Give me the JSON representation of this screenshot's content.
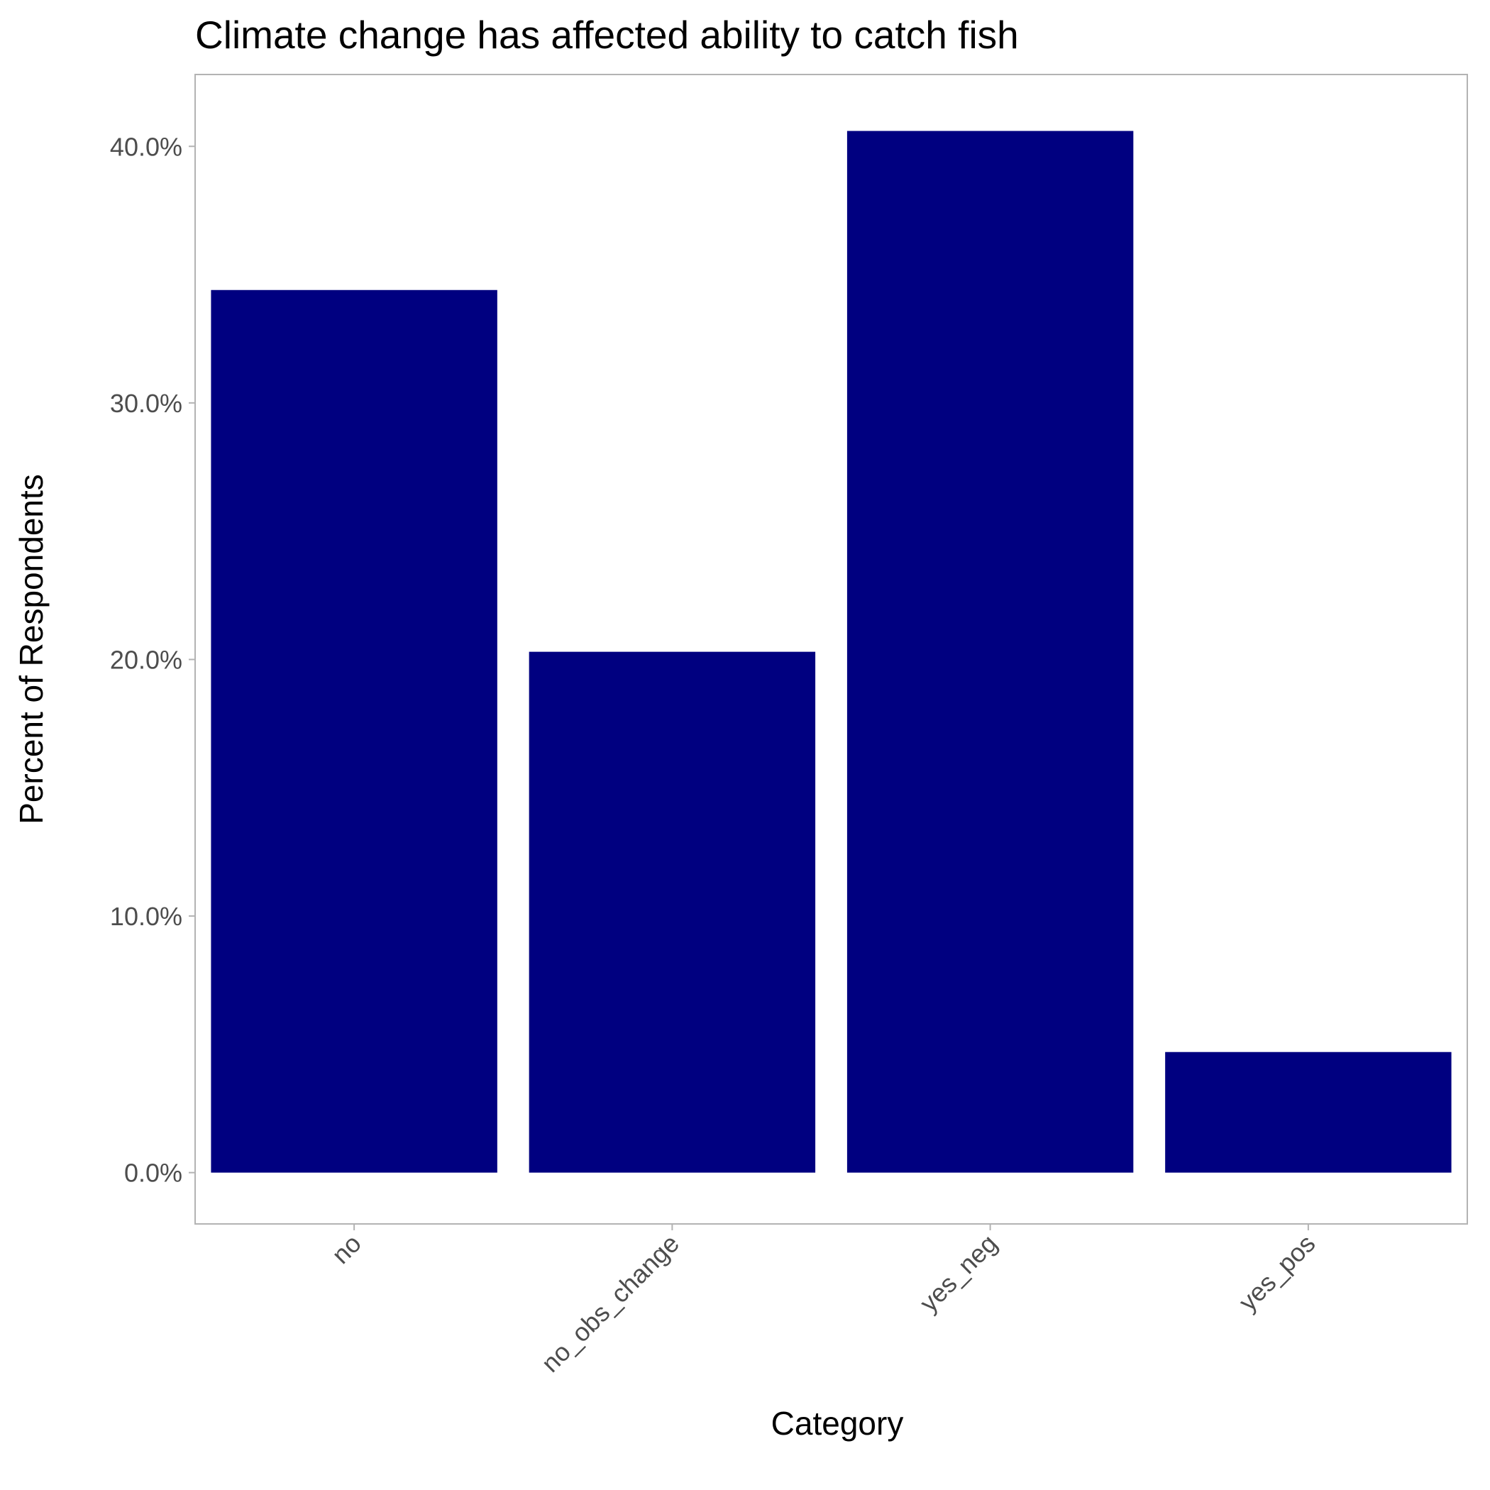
{
  "chart_data": {
    "type": "bar",
    "title": "Climate change has affected ability to catch fish",
    "xlabel": "Category",
    "ylabel": "Percent of Respondents",
    "categories": [
      "no",
      "no_obs_change",
      "yes_neg",
      "yes_pos"
    ],
    "values": [
      34.4,
      20.3,
      40.6,
      4.7
    ],
    "value_unit": "%",
    "ylim": [
      -2.0,
      42.8
    ],
    "yticks": [
      0,
      10,
      20,
      30,
      40
    ],
    "ytick_labels": [
      "0.0%",
      "10.0%",
      "20.0%",
      "30.0%",
      "40.0%"
    ],
    "bar_color": "#000080",
    "panel_border_color": "#b3b3b3",
    "tick_color": "#b3b3b3",
    "tick_label_color": "#4d4d4d",
    "grid": false,
    "legend": "none",
    "xtick_rotation_deg": -45
  }
}
